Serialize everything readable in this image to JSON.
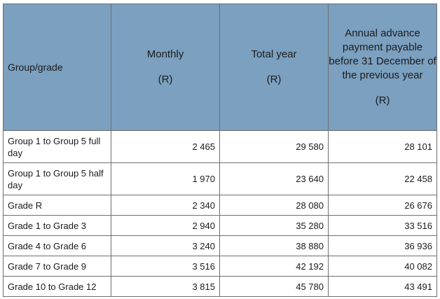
{
  "table": {
    "headers": {
      "group": "Group/grade",
      "monthly": "Monthly",
      "monthly_unit": "(R)",
      "total_year": "Total year",
      "total_year_unit": "(R)",
      "annual_advance": "Annual advance payment payable before 31 December of the previous year",
      "annual_advance_unit": "(R)"
    },
    "rows": [
      {
        "group": "Group 1 to Group 5 full day",
        "monthly": "2 465",
        "total_year": "29 580",
        "annual_advance": "28 101"
      },
      {
        "group": "Group 1 to Group 5 half day",
        "monthly": "1 970",
        "total_year": "23 640",
        "annual_advance": "22 458"
      },
      {
        "group": "Grade R",
        "monthly": "2 340",
        "total_year": "28 080",
        "annual_advance": "26 676"
      },
      {
        "group": "Grade 1 to Grade 3",
        "monthly": "2 940",
        "total_year": "35 280",
        "annual_advance": "33 516"
      },
      {
        "group": "Grade 4 to Grade 6",
        "monthly": "3 240",
        "total_year": "38 880",
        "annual_advance": "36 936"
      },
      {
        "group": "Grade 7 to Grade 9",
        "monthly": "3 516",
        "total_year": "42 192",
        "annual_advance": "40 082"
      },
      {
        "group": "Grade 10 to Grade 12",
        "monthly": "3 815",
        "total_year": "45 780",
        "annual_advance": "43 491"
      }
    ]
  },
  "colors": {
    "header_background": "#7ba0c0",
    "border": "#6f6f6f"
  }
}
